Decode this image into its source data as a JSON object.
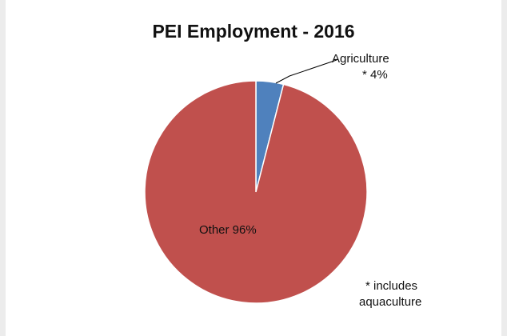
{
  "chart_data": {
    "type": "pie",
    "title": "PEI Employment - 2016",
    "slices": [
      {
        "label": "Agriculture",
        "label_suffix": "* 4%",
        "value": 4,
        "color": "#4f81bd"
      },
      {
        "label": "Other 96%",
        "value": 96,
        "color": "#c0504d"
      }
    ],
    "start_angle_deg": 0,
    "direction": "clockwise",
    "legend": "none",
    "footnote_line1": "* includes",
    "footnote_line2": "aquaculture"
  }
}
